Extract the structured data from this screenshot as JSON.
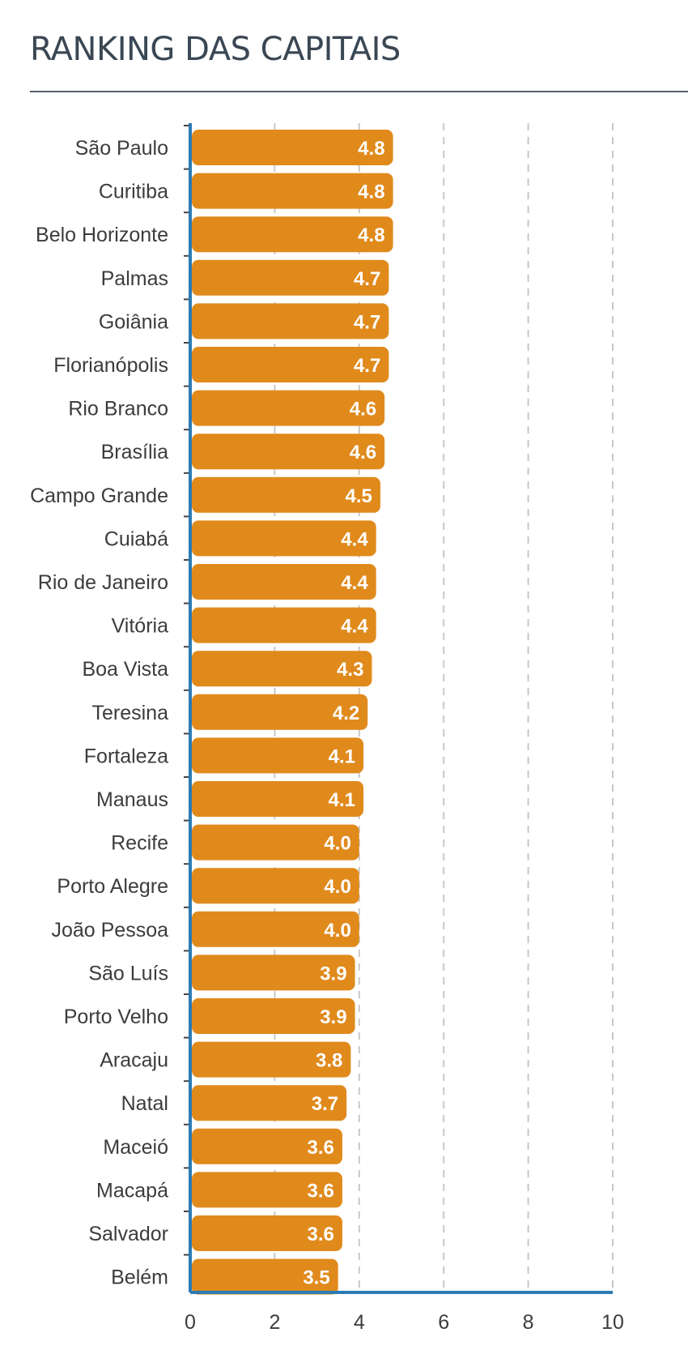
{
  "header": {
    "title": "RANKING DAS CAPITAIS"
  },
  "chart_data": {
    "type": "bar",
    "orientation": "horizontal",
    "title": "RANKING DAS CAPITAIS",
    "categories": [
      "São Paulo",
      "Curitiba",
      "Belo Horizonte",
      "Palmas",
      "Goiânia",
      "Florianópolis",
      "Rio Branco",
      "Brasília",
      "Campo Grande",
      "Cuiabá",
      "Rio de Janeiro",
      "Vitória",
      "Boa Vista",
      "Teresina",
      "Fortaleza",
      "Manaus",
      "Recife",
      "Porto Alegre",
      "João Pessoa",
      "São Luís",
      "Porto Velho",
      "Aracaju",
      "Natal",
      "Maceió",
      "Macapá",
      "Salvador",
      "Belém"
    ],
    "values": [
      4.8,
      4.8,
      4.8,
      4.7,
      4.7,
      4.7,
      4.6,
      4.6,
      4.5,
      4.4,
      4.4,
      4.4,
      4.3,
      4.2,
      4.1,
      4.1,
      4.0,
      4.0,
      4.0,
      3.9,
      3.9,
      3.8,
      3.7,
      3.6,
      3.6,
      3.6,
      3.5
    ],
    "value_labels": [
      "4.8",
      "4.8",
      "4.8",
      "4.7",
      "4.7",
      "4.7",
      "4.6",
      "4.6",
      "4.5",
      "4.4",
      "4.4",
      "4.4",
      "4.3",
      "4.2",
      "4.1",
      "4.1",
      "4.0",
      "4.0",
      "4.0",
      "3.9",
      "3.9",
      "3.8",
      "3.7",
      "3.6",
      "3.6",
      "3.6",
      "3.5"
    ],
    "xlim": [
      0,
      10
    ],
    "xticks": [
      0,
      2,
      4,
      6,
      8,
      10
    ],
    "xtick_labels": [
      "0",
      "2",
      "4",
      "6",
      "8",
      "10"
    ],
    "grid": "vertical-dashed",
    "xlabel": "",
    "ylabel": "",
    "colors": {
      "bar": "#e08a1c",
      "bar_label": "#ffffff",
      "axis": "#2b7bb5",
      "grid": "#c8c8c8",
      "text": "#3c3c3c"
    }
  }
}
